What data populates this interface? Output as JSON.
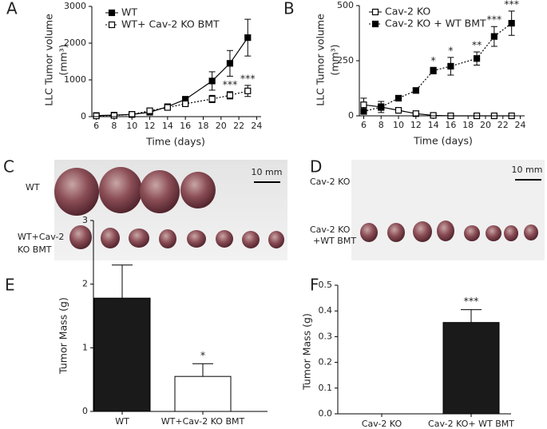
{
  "chart_data": [
    {
      "type": "line",
      "panel": "A",
      "ylabel": [
        "LLC Tumor volume",
        "(mm³)"
      ],
      "xlabel": "Time (days)",
      "xlim": [
        5.5,
        24.5
      ],
      "xticks": [
        6,
        8,
        10,
        12,
        14,
        16,
        18,
        20,
        22,
        24
      ],
      "ylim": [
        0,
        3000
      ],
      "yticks": [
        0,
        1000,
        2000,
        3000
      ],
      "series": [
        {
          "name": "WT",
          "color": "#000000",
          "marker": "filled",
          "line_style": "solid",
          "x": [
            6,
            8,
            10,
            12,
            14,
            16,
            19,
            21,
            23
          ],
          "values": [
            30,
            40,
            60,
            120,
            270,
            470,
            970,
            1450,
            2150
          ],
          "errors": [
            20,
            20,
            30,
            40,
            50,
            80,
            250,
            350,
            500
          ]
        },
        {
          "name": "WT+ Cav-2 KO BMT",
          "color": "#000000",
          "marker": "open",
          "line_style": "dotted",
          "x": [
            6,
            8,
            10,
            12,
            14,
            16,
            19,
            21,
            23
          ],
          "values": [
            20,
            30,
            60,
            160,
            250,
            350,
            480,
            580,
            700
          ],
          "errors": [
            10,
            20,
            30,
            40,
            50,
            60,
            100,
            100,
            150
          ],
          "significance": [
            null,
            null,
            null,
            null,
            null,
            null,
            null,
            "***",
            "***"
          ]
        }
      ]
    },
    {
      "type": "line",
      "panel": "B",
      "ylabel": [
        "LLC Tumor volume",
        "(mm³)"
      ],
      "xlabel": "Time (days)",
      "xlim": [
        5.5,
        24.5
      ],
      "xticks": [
        6,
        8,
        10,
        12,
        14,
        16,
        18,
        20,
        22,
        24
      ],
      "ylim": [
        0,
        500
      ],
      "yticks": [
        0,
        250,
        500
      ],
      "series": [
        {
          "name": "Cav-2 KO",
          "color": "#000000",
          "marker": "open",
          "line_style": "solid",
          "x": [
            6,
            8,
            10,
            12,
            14,
            16,
            19,
            21,
            23
          ],
          "values": [
            50,
            40,
            25,
            10,
            2,
            0,
            0,
            0,
            0
          ],
          "errors": [
            30,
            25,
            10,
            5,
            2,
            0,
            0,
            0,
            0
          ]
        },
        {
          "name": "Cav-2 KO + WT BMT",
          "color": "#000000",
          "marker": "filled",
          "line_style": "dotted",
          "x": [
            6,
            8,
            10,
            12,
            14,
            16,
            19,
            21,
            23
          ],
          "values": [
            20,
            40,
            80,
            115,
            205,
            225,
            260,
            360,
            420
          ],
          "errors": [
            10,
            15,
            10,
            10,
            15,
            40,
            30,
            45,
            55
          ],
          "significance": [
            null,
            null,
            null,
            null,
            "*",
            "*",
            "**",
            "***",
            "***"
          ]
        }
      ]
    },
    {
      "type": "bar",
      "panel": "E",
      "ylabel": [
        "Tumor Mass (g)"
      ],
      "ylim": [
        0,
        3
      ],
      "yticks": [
        0,
        1,
        2,
        3
      ],
      "categories": [
        "WT",
        "WT+Cav-2 KO BMT"
      ],
      "values": [
        1.78,
        0.55
      ],
      "errors": [
        0.52,
        0.2
      ],
      "colors": [
        "#1a1a1a",
        "#ffffff"
      ],
      "significance": [
        null,
        "*"
      ]
    },
    {
      "type": "bar",
      "panel": "F",
      "ylabel": [
        "Tumor Mass (g)"
      ],
      "ylim": [
        0,
        0.5
      ],
      "yticks": [
        {
          "value": 0,
          "label": "0.0"
        },
        0.1,
        0.2,
        0.3,
        0.4,
        0.5
      ],
      "categories": [
        "Cav-2 KO",
        "Cav-2 KO+ WT BMT"
      ],
      "values": [
        0,
        0.355
      ],
      "errors": [
        0,
        0.05
      ],
      "colors": [
        "#1a1a1a",
        "#1a1a1a"
      ],
      "significance": [
        null,
        "***"
      ]
    }
  ],
  "photos": [
    {
      "panel": "C",
      "row_labels": [
        [
          "WT"
        ],
        [
          "WT+Cav-2",
          "KO BMT"
        ]
      ],
      "scale": "10 mm"
    },
    {
      "panel": "D",
      "row_labels": [
        [
          "Cav-2 KO"
        ],
        [
          "Cav-2 KO",
          "+WT BMT"
        ]
      ],
      "scale": "10 mm"
    }
  ]
}
